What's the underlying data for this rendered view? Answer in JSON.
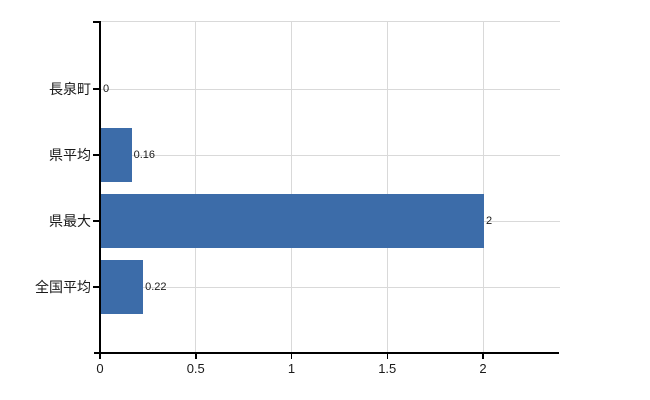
{
  "chart_data": {
    "type": "bar",
    "orientation": "horizontal",
    "title": "",
    "categories": [
      "長泉町",
      "県平均",
      "県最大",
      "全国平均"
    ],
    "values": [
      0,
      0.16,
      2,
      0.22
    ],
    "value_labels": [
      "0",
      "0.16",
      "2",
      "0.22"
    ],
    "x_ticks": [
      0,
      0.5,
      1,
      1.5,
      2
    ],
    "x_tick_labels": [
      "0",
      "0.5",
      "1",
      "1.5",
      "2"
    ],
    "x_axis_range": [
      0,
      2.4
    ],
    "grid": true,
    "legend": "none",
    "colors": {
      "bar": "#3c6ca9",
      "gridline": "#d9d9d9",
      "axis": "#000000",
      "text": "#1a1a1a",
      "background": "#ffffff"
    }
  }
}
